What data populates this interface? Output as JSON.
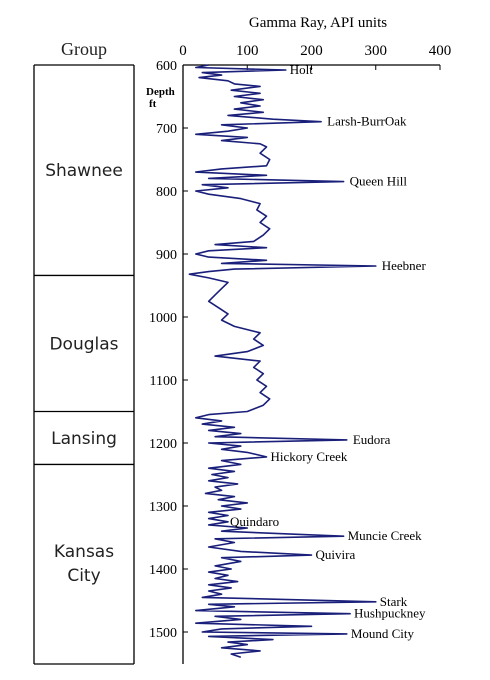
{
  "chart_data": {
    "type": "line",
    "title": "",
    "xlabel": "Gamma Ray, API units",
    "ylabel": "Depth ft",
    "group_header": "Group",
    "xlim": [
      0,
      400
    ],
    "ylim": [
      600,
      1540
    ],
    "x_ticks": [
      0,
      100,
      200,
      300,
      400
    ],
    "y_ticks": [
      600,
      700,
      800,
      900,
      1000,
      1100,
      1200,
      1300,
      1400,
      1500
    ],
    "y_reversed": true,
    "line_color": "#1a1f7a",
    "groups": [
      {
        "name": "Shawnee",
        "top": 600,
        "bottom": 934
      },
      {
        "name": "Douglas",
        "top": 934,
        "bottom": 1150
      },
      {
        "name": "Lansing",
        "top": 1150,
        "bottom": 1234
      },
      {
        "name": "Kansas City",
        "top": 1234,
        "bottom": 1540
      }
    ],
    "annotations": [
      {
        "label": "Holt",
        "depth": 608,
        "value": 160
      },
      {
        "label": "Larsh-BurrOak",
        "depth": 690,
        "value": 215
      },
      {
        "label": "Queen Hill",
        "depth": 785,
        "value": 250
      },
      {
        "label": "Heebner",
        "depth": 919,
        "value": 300
      },
      {
        "label": "Eudora",
        "depth": 1195,
        "value": 255
      },
      {
        "label": "Hickory Creek",
        "depth": 1222,
        "value": 130
      },
      {
        "label": "Quindaro",
        "depth": 1325,
        "value": 70
      },
      {
        "label": "Muncie Creek",
        "depth": 1348,
        "value": 250
      },
      {
        "label": "Quivira",
        "depth": 1378,
        "value": 200
      },
      {
        "label": "Stark",
        "depth": 1452,
        "value": 300
      },
      {
        "label": "Hushpuckney",
        "depth": 1471,
        "value": 260
      },
      {
        "label": "Mound City",
        "depth": 1503,
        "value": 255
      }
    ],
    "series": [
      {
        "points": [
          [
            600,
            40
          ],
          [
            604,
            20
          ],
          [
            608,
            160
          ],
          [
            612,
            30
          ],
          [
            616,
            60
          ],
          [
            620,
            25
          ],
          [
            625,
            70
          ],
          [
            630,
            80
          ],
          [
            634,
            120
          ],
          [
            640,
            75
          ],
          [
            645,
            120
          ],
          [
            650,
            80
          ],
          [
            655,
            125
          ],
          [
            660,
            90
          ],
          [
            665,
            120
          ],
          [
            670,
            80
          ],
          [
            675,
            125
          ],
          [
            680,
            70
          ],
          [
            686,
            140
          ],
          [
            690,
            215
          ],
          [
            695,
            60
          ],
          [
            700,
            100
          ],
          [
            705,
            70
          ],
          [
            710,
            20
          ],
          [
            715,
            100
          ],
          [
            720,
            60
          ],
          [
            725,
            120
          ],
          [
            730,
            130
          ],
          [
            740,
            120
          ],
          [
            750,
            135
          ],
          [
            760,
            130
          ],
          [
            765,
            60
          ],
          [
            770,
            20
          ],
          [
            775,
            130
          ],
          [
            780,
            40
          ],
          [
            785,
            250
          ],
          [
            790,
            30
          ],
          [
            795,
            70
          ],
          [
            800,
            20
          ],
          [
            805,
            40
          ],
          [
            812,
            90
          ],
          [
            820,
            120
          ],
          [
            830,
            115
          ],
          [
            840,
            130
          ],
          [
            850,
            120
          ],
          [
            860,
            135
          ],
          [
            870,
            125
          ],
          [
            880,
            110
          ],
          [
            885,
            50
          ],
          [
            890,
            130
          ],
          [
            895,
            40
          ],
          [
            900,
            20
          ],
          [
            905,
            40
          ],
          [
            910,
            130
          ],
          [
            915,
            60
          ],
          [
            919,
            300
          ],
          [
            924,
            80
          ],
          [
            928,
            40
          ],
          [
            932,
            10
          ],
          [
            938,
            40
          ],
          [
            945,
            70
          ],
          [
            955,
            60
          ],
          [
            965,
            50
          ],
          [
            975,
            40
          ],
          [
            985,
            55
          ],
          [
            995,
            70
          ],
          [
            1005,
            60
          ],
          [
            1015,
            80
          ],
          [
            1025,
            120
          ],
          [
            1035,
            110
          ],
          [
            1045,
            125
          ],
          [
            1055,
            100
          ],
          [
            1062,
            50
          ],
          [
            1070,
            120
          ],
          [
            1080,
            110
          ],
          [
            1090,
            125
          ],
          [
            1100,
            115
          ],
          [
            1110,
            130
          ],
          [
            1120,
            120
          ],
          [
            1130,
            135
          ],
          [
            1140,
            125
          ],
          [
            1150,
            100
          ],
          [
            1155,
            40
          ],
          [
            1160,
            20
          ],
          [
            1165,
            60
          ],
          [
            1170,
            30
          ],
          [
            1175,
            80
          ],
          [
            1180,
            40
          ],
          [
            1185,
            90
          ],
          [
            1190,
            50
          ],
          [
            1195,
            255
          ],
          [
            1200,
            40
          ],
          [
            1205,
            90
          ],
          [
            1210,
            60
          ],
          [
            1215,
            100
          ],
          [
            1222,
            130
          ],
          [
            1228,
            60
          ],
          [
            1234,
            90
          ],
          [
            1240,
            40
          ],
          [
            1245,
            80
          ],
          [
            1250,
            45
          ],
          [
            1255,
            70
          ],
          [
            1260,
            40
          ],
          [
            1265,
            85
          ],
          [
            1270,
            50
          ],
          [
            1275,
            60
          ],
          [
            1280,
            35
          ],
          [
            1285,
            80
          ],
          [
            1290,
            55
          ],
          [
            1295,
            100
          ],
          [
            1300,
            60
          ],
          [
            1305,
            90
          ],
          [
            1310,
            40
          ],
          [
            1315,
            70
          ],
          [
            1320,
            40
          ],
          [
            1325,
            70
          ],
          [
            1330,
            40
          ],
          [
            1335,
            100
          ],
          [
            1340,
            60
          ],
          [
            1348,
            250
          ],
          [
            1352,
            50
          ],
          [
            1358,
            80
          ],
          [
            1365,
            40
          ],
          [
            1372,
            90
          ],
          [
            1378,
            200
          ],
          [
            1382,
            60
          ],
          [
            1388,
            90
          ],
          [
            1395,
            50
          ],
          [
            1400,
            75
          ],
          [
            1405,
            40
          ],
          [
            1410,
            70
          ],
          [
            1415,
            50
          ],
          [
            1420,
            85
          ],
          [
            1425,
            40
          ],
          [
            1430,
            75
          ],
          [
            1435,
            40
          ],
          [
            1440,
            60
          ],
          [
            1445,
            30
          ],
          [
            1452,
            300
          ],
          [
            1456,
            40
          ],
          [
            1460,
            80
          ],
          [
            1466,
            20
          ],
          [
            1471,
            260
          ],
          [
            1475,
            50
          ],
          [
            1480,
            90
          ],
          [
            1486,
            20
          ],
          [
            1491,
            200
          ],
          [
            1495,
            60
          ],
          [
            1500,
            30
          ],
          [
            1503,
            255
          ],
          [
            1507,
            40
          ],
          [
            1512,
            140
          ],
          [
            1516,
            70
          ],
          [
            1520,
            100
          ],
          [
            1525,
            60
          ],
          [
            1530,
            120
          ],
          [
            1535,
            75
          ],
          [
            1540,
            90
          ]
        ]
      }
    ]
  }
}
